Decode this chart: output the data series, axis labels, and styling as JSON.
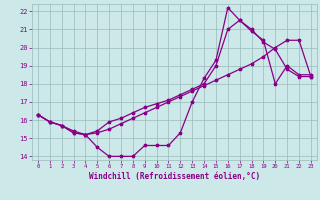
{
  "xlabel": "Windchill (Refroidissement éolien,°C)",
  "bg_color": "#cce8e8",
  "grid_color": "#99bbbb",
  "line_color": "#880088",
  "xlim": [
    -0.5,
    23.5
  ],
  "ylim": [
    13.8,
    22.4
  ],
  "xticks": [
    0,
    1,
    2,
    3,
    4,
    5,
    6,
    7,
    8,
    9,
    10,
    11,
    12,
    13,
    14,
    15,
    16,
    17,
    18,
    19,
    20,
    21,
    22,
    23
  ],
  "yticks": [
    14,
    15,
    16,
    17,
    18,
    19,
    20,
    21,
    22
  ],
  "line1_x": [
    0,
    1,
    2,
    3,
    4,
    5,
    6,
    7,
    8,
    9,
    10,
    11,
    12,
    13,
    14,
    15,
    16,
    17,
    18,
    19,
    20,
    21,
    22,
    23
  ],
  "line1_y": [
    16.3,
    15.9,
    15.7,
    15.3,
    15.2,
    14.5,
    14.0,
    14.0,
    14.0,
    14.6,
    14.6,
    14.6,
    15.3,
    17.0,
    18.3,
    19.3,
    22.2,
    21.5,
    20.9,
    20.4,
    18.0,
    19.0,
    18.5,
    18.5
  ],
  "line2_x": [
    0,
    1,
    2,
    3,
    4,
    5,
    6,
    7,
    8,
    9,
    10,
    11,
    12,
    13,
    14,
    15,
    16,
    17,
    18,
    19,
    20,
    21,
    22,
    23
  ],
  "line2_y": [
    16.3,
    15.9,
    15.7,
    15.3,
    15.2,
    15.3,
    15.5,
    15.8,
    16.1,
    16.4,
    16.7,
    17.0,
    17.3,
    17.6,
    17.9,
    18.2,
    18.5,
    18.8,
    19.1,
    19.5,
    20.0,
    20.4,
    20.4,
    18.4
  ],
  "line3_x": [
    0,
    1,
    2,
    3,
    4,
    5,
    6,
    7,
    8,
    9,
    10,
    11,
    12,
    13,
    14,
    15,
    16,
    17,
    18,
    19,
    20,
    21,
    22,
    23
  ],
  "line3_y": [
    16.3,
    15.9,
    15.7,
    15.4,
    15.2,
    15.4,
    15.9,
    16.1,
    16.4,
    16.7,
    16.9,
    17.1,
    17.4,
    17.7,
    18.0,
    19.0,
    21.0,
    21.5,
    21.0,
    20.3,
    19.9,
    18.8,
    18.4,
    18.4
  ]
}
